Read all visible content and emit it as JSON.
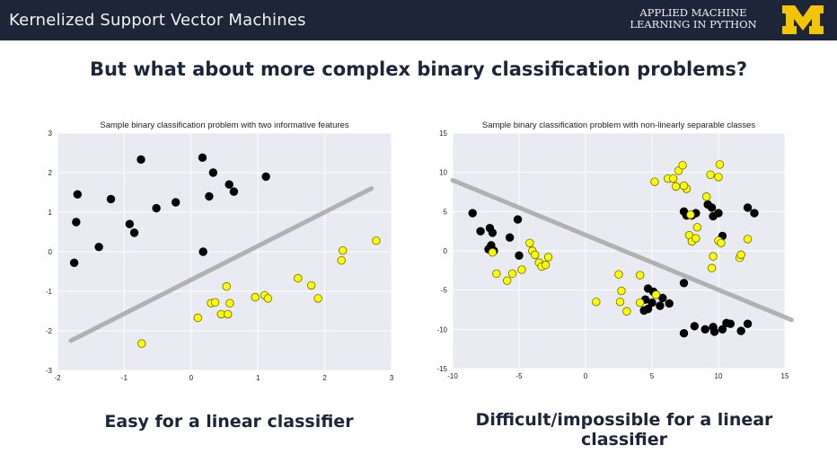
{
  "header": {
    "title": "Kernelized Support Vector Machines",
    "course_line1": "APPLIED MACHINE",
    "course_line2": "LEARNING IN PYTHON",
    "logo_icon": "block-m-logo-icon",
    "bar_color": "#1c2638",
    "logo_color": "#f5c400"
  },
  "slide": {
    "subtitle": "But what about more complex binary classification problems?",
    "caption_left": "Easy for a linear classifier",
    "caption_right": "Difficult/impossible for a linear classifier"
  },
  "chart_data": [
    {
      "type": "scatter",
      "title": "Sample binary classification problem with two informative features",
      "xlim": [
        -2,
        3
      ],
      "ylim": [
        -3,
        3
      ],
      "xticks": [
        "-2",
        "-1",
        "0",
        "1",
        "2",
        "3"
      ],
      "yticks": [
        "3",
        "2",
        "1",
        "0",
        "-1",
        "-2",
        "-3"
      ],
      "grid": true,
      "series": [
        {
          "color": "#000000",
          "points": [
            [
              -1.7,
              1.45
            ],
            [
              -1.72,
              0.75
            ],
            [
              -1.75,
              -0.28
            ],
            [
              -1.2,
              1.33
            ],
            [
              -1.38,
              0.12
            ],
            [
              -0.92,
              0.7
            ],
            [
              -0.85,
              0.48
            ],
            [
              -0.75,
              2.33
            ],
            [
              -0.52,
              1.1
            ],
            [
              -0.23,
              1.25
            ],
            [
              0.17,
              2.38
            ],
            [
              0.33,
              2.0
            ],
            [
              0.27,
              1.4
            ],
            [
              0.57,
              1.7
            ],
            [
              0.64,
              1.52
            ],
            [
              1.12,
              1.9
            ],
            [
              0.18,
              0.0
            ]
          ]
        },
        {
          "color": "#ffff00",
          "points": [
            [
              -0.74,
              -2.32
            ],
            [
              0.1,
              -1.67
            ],
            [
              0.3,
              -1.3
            ],
            [
              0.36,
              -1.28
            ],
            [
              0.45,
              -1.58
            ],
            [
              0.55,
              -1.58
            ],
            [
              0.58,
              -1.3
            ],
            [
              0.53,
              -0.88
            ],
            [
              0.96,
              -1.15
            ],
            [
              1.1,
              -1.1
            ],
            [
              1.15,
              -1.18
            ],
            [
              1.6,
              -0.67
            ],
            [
              1.8,
              -0.85
            ],
            [
              1.9,
              -1.18
            ],
            [
              2.25,
              -0.22
            ],
            [
              2.27,
              0.03
            ],
            [
              2.77,
              0.28
            ]
          ]
        }
      ],
      "line": [
        [
          -1.8,
          -2.25
        ],
        [
          2.7,
          1.6
        ]
      ],
      "line_color": "#a8a8a8"
    },
    {
      "type": "scatter",
      "title": "Sample binary classification problem with non-linearly separable classes",
      "xlim": [
        -10,
        15
      ],
      "ylim": [
        -15,
        15
      ],
      "xticks": [
        "-10",
        "-5",
        "0",
        "5",
        "10",
        "15"
      ],
      "yticks": [
        "15",
        "10",
        "5",
        "0",
        "-5",
        "-10",
        "-15"
      ],
      "grid": true,
      "series": [
        {
          "color": "#000000",
          "points": [
            [
              -8.5,
              4.8
            ],
            [
              -7.9,
              2.5
            ],
            [
              -7.2,
              2.9
            ],
            [
              -7.0,
              2.3
            ],
            [
              -7.1,
              0.7
            ],
            [
              -7.3,
              0.2
            ],
            [
              -6.9,
              0.0
            ],
            [
              -5.7,
              1.7
            ],
            [
              -5.1,
              4.0
            ],
            [
              -5.0,
              -0.6
            ],
            [
              4.7,
              -4.8
            ],
            [
              5.1,
              -5.2
            ],
            [
              5.3,
              -5.6
            ],
            [
              4.5,
              -6.2
            ],
            [
              5.0,
              -6.6
            ],
            [
              5.8,
              -6.0
            ],
            [
              5.6,
              -7.0
            ],
            [
              4.7,
              -7.4
            ],
            [
              4.4,
              -7.6
            ],
            [
              6.3,
              -6.7
            ],
            [
              7.4,
              -4.1
            ],
            [
              7.4,
              -10.5
            ],
            [
              8.2,
              -9.6
            ],
            [
              9.0,
              -10.0
            ],
            [
              9.6,
              -9.7
            ],
            [
              9.7,
              -10.3
            ],
            [
              10.3,
              -10.0
            ],
            [
              10.6,
              -9.2
            ],
            [
              10.9,
              -9.3
            ],
            [
              11.7,
              -10.2
            ],
            [
              12.2,
              -9.3
            ],
            [
              7.4,
              5.0
            ],
            [
              7.6,
              4.5
            ],
            [
              8.0,
              4.5
            ],
            [
              8.3,
              4.8
            ],
            [
              9.2,
              5.9
            ],
            [
              9.5,
              5.5
            ],
            [
              9.6,
              4.4
            ],
            [
              10.0,
              4.8
            ],
            [
              10.3,
              1.9
            ],
            [
              12.2,
              5.5
            ],
            [
              12.7,
              4.8
            ]
          ]
        },
        {
          "color": "#ffff00",
          "points": [
            [
              -7.0,
              -0.2
            ],
            [
              -6.7,
              -2.9
            ],
            [
              -5.9,
              -3.8
            ],
            [
              -5.5,
              -2.9
            ],
            [
              -4.8,
              -2.4
            ],
            [
              -4.2,
              1.0
            ],
            [
              -4.0,
              0.0
            ],
            [
              -3.8,
              -0.5
            ],
            [
              -3.5,
              -1.5
            ],
            [
              -3.3,
              -2.0
            ],
            [
              -3.0,
              -1.8
            ],
            [
              -2.8,
              -0.8
            ],
            [
              0.8,
              -6.5
            ],
            [
              2.5,
              -3.0
            ],
            [
              2.7,
              -5.1
            ],
            [
              2.6,
              -6.5
            ],
            [
              3.1,
              -7.7
            ],
            [
              4.1,
              -3.1
            ],
            [
              4.1,
              -6.6
            ],
            [
              5.3,
              -5.6
            ],
            [
              5.2,
              8.8
            ],
            [
              6.2,
              9.2
            ],
            [
              6.6,
              9.2
            ],
            [
              7.0,
              10.2
            ],
            [
              7.3,
              10.9
            ],
            [
              6.8,
              8.2
            ],
            [
              7.6,
              7.9
            ],
            [
              7.4,
              8.3
            ],
            [
              7.9,
              4.6
            ],
            [
              7.8,
              2.0
            ],
            [
              8.0,
              1.2
            ],
            [
              8.3,
              1.6
            ],
            [
              8.4,
              3.0
            ],
            [
              9.1,
              6.9
            ],
            [
              9.4,
              9.7
            ],
            [
              9.5,
              -2.2
            ],
            [
              9.6,
              -0.7
            ],
            [
              10.0,
              9.4
            ],
            [
              10.1,
              11.0
            ],
            [
              10.0,
              1.3
            ],
            [
              10.2,
              1.0
            ],
            [
              11.6,
              -0.9
            ],
            [
              11.7,
              -0.5
            ],
            [
              12.2,
              1.5
            ]
          ]
        }
      ],
      "line": [
        [
          -10.0,
          9.0
        ],
        [
          15.5,
          -8.8
        ]
      ],
      "line_color": "#a8a8a8"
    }
  ]
}
